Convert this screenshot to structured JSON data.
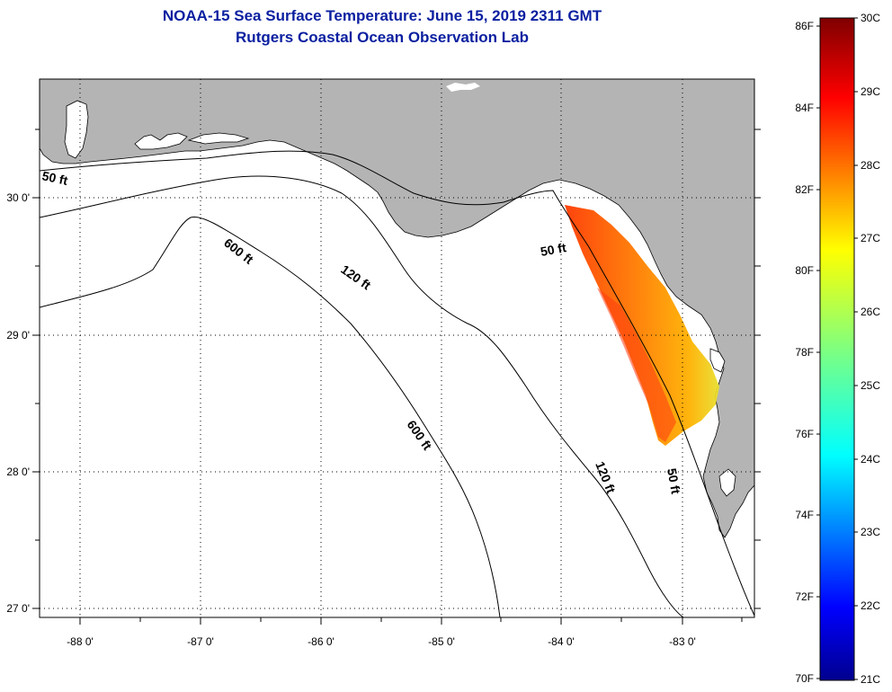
{
  "header": {
    "title": "NOAA-15 Sea Surface Temperature:  June 15, 2019 2311 GMT",
    "subtitle": "Rutgers Coastal Ocean Observation Lab"
  },
  "map": {
    "lon_ticks": [
      "-88 0'",
      "-87 0'",
      "-86 0'",
      "-85 0'",
      "-84 0'",
      "-83 0'"
    ],
    "lat_ticks": [
      "30 0'",
      "29 0'",
      "28 0'",
      "27 0'"
    ],
    "contour_labels": [
      "50 ft",
      "600 ft",
      "120 ft",
      "50 ft",
      "600 ft",
      "120 ft",
      "50 ft"
    ],
    "colors": {
      "land": "#b4b4b4",
      "ocean": "#ffffff",
      "contour": "#000000"
    }
  },
  "colorbar": {
    "fahrenheit_labels": [
      "86F",
      "84F",
      "82F",
      "80F",
      "78F",
      "76F",
      "74F",
      "72F",
      "70F"
    ],
    "celsius_labels": [
      "30C",
      "29C",
      "28C",
      "27C",
      "26C",
      "25C",
      "24C",
      "23C",
      "22C",
      "21C"
    ],
    "range_c": [
      21,
      30
    ],
    "colormap": "jet"
  }
}
